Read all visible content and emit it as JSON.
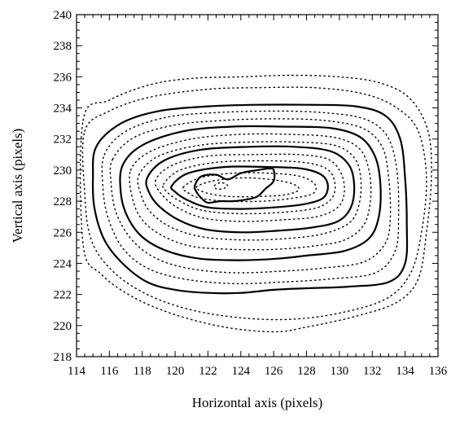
{
  "chart_data": {
    "type": "contour",
    "title": "",
    "xlabel": "Horizontal axis (pixels)",
    "ylabel": "Vertical axis (pixels)",
    "xlim": [
      114,
      136
    ],
    "ylim": [
      218,
      240
    ],
    "xticks": [
      114,
      116,
      118,
      120,
      122,
      124,
      126,
      128,
      130,
      132,
      134,
      136
    ],
    "yticks": [
      218,
      220,
      222,
      224,
      226,
      228,
      230,
      232,
      234,
      236,
      238,
      240
    ],
    "grid": false,
    "legend": "none",
    "peak_center": [
      124,
      229
    ],
    "contours": [
      {
        "style": "dotted",
        "points": [
          [
            114.4,
            233.2
          ],
          [
            116,
            234.5
          ],
          [
            118.5,
            235.5
          ],
          [
            121,
            235.9
          ],
          [
            124,
            236.0
          ],
          [
            127,
            236.1
          ],
          [
            130,
            236.0
          ],
          [
            132.5,
            235.6
          ],
          [
            134.3,
            234.6
          ],
          [
            135.4,
            232.5
          ],
          [
            135.6,
            229.5
          ],
          [
            135.3,
            226.0
          ],
          [
            134.8,
            223.0
          ],
          [
            133.5,
            221.5
          ],
          [
            131,
            220.6
          ],
          [
            128,
            219.9
          ],
          [
            126,
            219.6
          ],
          [
            123,
            219.9
          ],
          [
            120,
            220.7
          ],
          [
            117.5,
            221.8
          ],
          [
            115.5,
            223.3
          ],
          [
            114.4,
            225.2
          ]
        ]
      },
      {
        "style": "dotted",
        "points": [
          [
            114.5,
            232.5
          ],
          [
            116,
            233.8
          ],
          [
            118.5,
            234.7
          ],
          [
            122,
            235.2
          ],
          [
            125,
            235.3
          ],
          [
            128.5,
            235.3
          ],
          [
            131.5,
            234.9
          ],
          [
            133.5,
            234.0
          ],
          [
            134.8,
            232.5
          ],
          [
            135.3,
            229.5
          ],
          [
            135.0,
            226.0
          ],
          [
            134.3,
            223.3
          ],
          [
            132.8,
            221.7
          ],
          [
            130,
            220.8
          ],
          [
            127,
            220.4
          ],
          [
            124,
            220.5
          ],
          [
            121,
            221.0
          ],
          [
            118.3,
            222.0
          ],
          [
            116.2,
            223.5
          ],
          [
            114.9,
            225.5
          ],
          [
            114.5,
            228.5
          ]
        ]
      },
      {
        "style": "solid",
        "points": [
          [
            115.2,
            231.5
          ],
          [
            116.7,
            233.0
          ],
          [
            119,
            233.8
          ],
          [
            122,
            234.1
          ],
          [
            125,
            234.2
          ],
          [
            128,
            234.2
          ],
          [
            131,
            234.1
          ],
          [
            132.8,
            233.5
          ],
          [
            133.7,
            232.0
          ],
          [
            134.0,
            229.5
          ],
          [
            134.1,
            226.5
          ],
          [
            134.0,
            224.0
          ],
          [
            133.0,
            222.8
          ],
          [
            130.5,
            222.5
          ],
          [
            128,
            222.4
          ],
          [
            126,
            222.3
          ],
          [
            124,
            222.1
          ],
          [
            122,
            222.1
          ],
          [
            120,
            222.3
          ],
          [
            118.3,
            222.8
          ],
          [
            116.8,
            224.0
          ],
          [
            115.7,
            225.5
          ],
          [
            115.1,
            227.5
          ],
          [
            115.0,
            229.5
          ]
        ]
      },
      {
        "style": "dotted",
        "points": [
          [
            115.7,
            231.0
          ],
          [
            117,
            232.5
          ],
          [
            119.5,
            233.4
          ],
          [
            122.5,
            233.7
          ],
          [
            126,
            233.8
          ],
          [
            129,
            233.7
          ],
          [
            131.5,
            233.3
          ],
          [
            132.9,
            232.2
          ],
          [
            133.5,
            230.0
          ],
          [
            133.6,
            227.0
          ],
          [
            133.4,
            224.8
          ],
          [
            132.2,
            223.4
          ],
          [
            129.5,
            223.0
          ],
          [
            126.5,
            222.8
          ],
          [
            123.5,
            222.7
          ],
          [
            120.5,
            223.0
          ],
          [
            118.3,
            223.7
          ],
          [
            116.8,
            225.0
          ],
          [
            115.9,
            227.0
          ],
          [
            115.6,
            229.0
          ]
        ]
      },
      {
        "style": "dotted",
        "points": [
          [
            116.2,
            230.7
          ],
          [
            117.5,
            232.1
          ],
          [
            120,
            232.9
          ],
          [
            123,
            233.2
          ],
          [
            126,
            233.3
          ],
          [
            129,
            233.2
          ],
          [
            131.4,
            232.7
          ],
          [
            132.6,
            231.5
          ],
          [
            133.0,
            229.5
          ],
          [
            133.1,
            227.0
          ],
          [
            132.8,
            225.3
          ],
          [
            131.5,
            224.1
          ],
          [
            129,
            223.7
          ],
          [
            126.5,
            223.5
          ],
          [
            123.5,
            223.4
          ],
          [
            120.7,
            223.7
          ],
          [
            118.7,
            224.4
          ],
          [
            117.3,
            225.6
          ],
          [
            116.4,
            227.3
          ],
          [
            116.1,
            229.2
          ]
        ]
      },
      {
        "style": "solid",
        "points": [
          [
            116.8,
            230.3
          ],
          [
            118,
            231.6
          ],
          [
            120.5,
            232.5
          ],
          [
            123.5,
            232.8
          ],
          [
            126.5,
            232.8
          ],
          [
            129.5,
            232.7
          ],
          [
            131.3,
            232.1
          ],
          [
            132.2,
            230.8
          ],
          [
            132.5,
            229.0
          ],
          [
            132.4,
            227.0
          ],
          [
            131.8,
            225.6
          ],
          [
            130.3,
            224.8
          ],
          [
            128,
            224.5
          ],
          [
            126.2,
            224.3
          ],
          [
            124,
            224.2
          ],
          [
            121.5,
            224.3
          ],
          [
            119.5,
            224.8
          ],
          [
            118,
            225.7
          ],
          [
            117.1,
            227.0
          ],
          [
            116.7,
            228.5
          ]
        ]
      },
      {
        "style": "dotted",
        "points": [
          [
            117.3,
            230.0
          ],
          [
            118.5,
            231.2
          ],
          [
            121,
            232.0
          ],
          [
            124,
            232.3
          ],
          [
            127,
            232.3
          ],
          [
            129.7,
            232.1
          ],
          [
            131.2,
            231.4
          ],
          [
            131.8,
            230.0
          ],
          [
            131.9,
            228.2
          ],
          [
            131.5,
            226.5
          ],
          [
            130.3,
            225.5
          ],
          [
            128.3,
            225.1
          ],
          [
            126,
            224.9
          ],
          [
            123.5,
            224.9
          ],
          [
            121,
            225.1
          ],
          [
            119.2,
            225.8
          ],
          [
            118.0,
            226.8
          ],
          [
            117.4,
            228.2
          ]
        ]
      },
      {
        "style": "dotted",
        "points": [
          [
            117.8,
            229.7
          ],
          [
            119,
            230.9
          ],
          [
            121.5,
            231.6
          ],
          [
            124.5,
            231.8
          ],
          [
            127.3,
            231.8
          ],
          [
            129.7,
            231.6
          ],
          [
            130.9,
            230.8
          ],
          [
            131.3,
            229.5
          ],
          [
            131.2,
            227.8
          ],
          [
            130.6,
            226.6
          ],
          [
            129,
            225.9
          ],
          [
            126.8,
            225.6
          ],
          [
            124.3,
            225.5
          ],
          [
            121.7,
            225.7
          ],
          [
            119.8,
            226.3
          ],
          [
            118.5,
            227.3
          ],
          [
            117.9,
            228.5
          ]
        ]
      },
      {
        "style": "solid",
        "points": [
          [
            118.3,
            229.5
          ],
          [
            119.3,
            230.6
          ],
          [
            121.5,
            231.3
          ],
          [
            124.5,
            231.5
          ],
          [
            127.3,
            231.5
          ],
          [
            129.5,
            231.2
          ],
          [
            130.6,
            230.3
          ],
          [
            130.9,
            229.0
          ],
          [
            130.7,
            227.6
          ],
          [
            129.9,
            226.7
          ],
          [
            128.3,
            226.3
          ],
          [
            126.2,
            226.1
          ],
          [
            124,
            226.0
          ],
          [
            121.8,
            226.2
          ],
          [
            120.2,
            226.8
          ],
          [
            119,
            227.7
          ],
          [
            118.4,
            228.6
          ]
        ]
      },
      {
        "style": "dotted",
        "points": [
          [
            118.8,
            229.3
          ],
          [
            119.8,
            230.3
          ],
          [
            122,
            230.9
          ],
          [
            125,
            231.0
          ],
          [
            127.5,
            231.0
          ],
          [
            129.3,
            230.7
          ],
          [
            130.1,
            229.8
          ],
          [
            130.3,
            228.6
          ],
          [
            129.9,
            227.6
          ],
          [
            128.6,
            227.0
          ],
          [
            126.5,
            226.8
          ],
          [
            124,
            226.7
          ],
          [
            121.8,
            226.9
          ],
          [
            120.3,
            227.5
          ],
          [
            119.3,
            228.3
          ]
        ]
      },
      {
        "style": "dotted",
        "points": [
          [
            119.3,
            229.1
          ],
          [
            120.3,
            230.0
          ],
          [
            122.5,
            230.5
          ],
          [
            125.3,
            230.6
          ],
          [
            127.8,
            230.5
          ],
          [
            129.2,
            230.1
          ],
          [
            129.7,
            229.3
          ],
          [
            129.6,
            228.3
          ],
          [
            128.7,
            227.6
          ],
          [
            126.7,
            227.3
          ],
          [
            124,
            227.2
          ],
          [
            121.7,
            227.4
          ],
          [
            120.3,
            228.0
          ],
          [
            119.5,
            228.6
          ]
        ]
      },
      {
        "style": "solid",
        "points": [
          [
            119.8,
            229.0
          ],
          [
            120.8,
            229.8
          ],
          [
            123,
            230.2
          ],
          [
            125.7,
            230.2
          ],
          [
            127.7,
            230.1
          ],
          [
            128.9,
            229.7
          ],
          [
            129.3,
            229.0
          ],
          [
            129.0,
            228.2
          ],
          [
            127.8,
            227.8
          ],
          [
            126,
            227.6
          ],
          [
            124,
            227.5
          ],
          [
            122,
            227.6
          ],
          [
            120.7,
            228.1
          ],
          [
            120.0,
            228.6
          ]
        ]
      },
      {
        "style": "dotted",
        "points": [
          [
            120.5,
            228.9
          ],
          [
            121.5,
            229.5
          ],
          [
            123.5,
            229.8
          ],
          [
            125.8,
            229.8
          ],
          [
            127.6,
            229.6
          ],
          [
            128.5,
            229.1
          ],
          [
            128.4,
            228.5
          ],
          [
            127.2,
            228.2
          ],
          [
            125.3,
            228.0
          ],
          [
            123.2,
            228.0
          ],
          [
            121.5,
            228.2
          ],
          [
            120.7,
            228.6
          ]
        ]
      },
      {
        "style": "dotted",
        "points": [
          [
            121.3,
            228.9
          ],
          [
            122.3,
            229.3
          ],
          [
            124,
            229.5
          ],
          [
            125.8,
            229.4
          ],
          [
            127.2,
            229.1
          ],
          [
            127.5,
            228.7
          ],
          [
            126.6,
            228.4
          ],
          [
            125,
            228.3
          ],
          [
            123.4,
            228.3
          ],
          [
            122,
            228.5
          ]
        ]
      },
      {
        "style": "solid",
        "points": [
          [
            121.2,
            229.0
          ],
          [
            121.6,
            229.6
          ],
          [
            122.5,
            229.7
          ],
          [
            123.2,
            229.4
          ],
          [
            124.0,
            229.8
          ],
          [
            125.0,
            230.0
          ],
          [
            125.7,
            230.1
          ],
          [
            126.0,
            230.0
          ],
          [
            126.0,
            229.3
          ],
          [
            125.5,
            228.8
          ],
          [
            125.0,
            228.3
          ],
          [
            124.3,
            228.1
          ],
          [
            123.5,
            228.0
          ],
          [
            122.7,
            228.0
          ],
          [
            122.0,
            227.9
          ],
          [
            121.6,
            228.2
          ],
          [
            121.3,
            228.6
          ]
        ]
      },
      {
        "style": "dotted",
        "points": [
          [
            122.4,
            229.0
          ],
          [
            122.8,
            229.2
          ],
          [
            123.2,
            229.0
          ],
          [
            122.9,
            228.8
          ],
          [
            122.5,
            228.8
          ]
        ]
      }
    ]
  }
}
